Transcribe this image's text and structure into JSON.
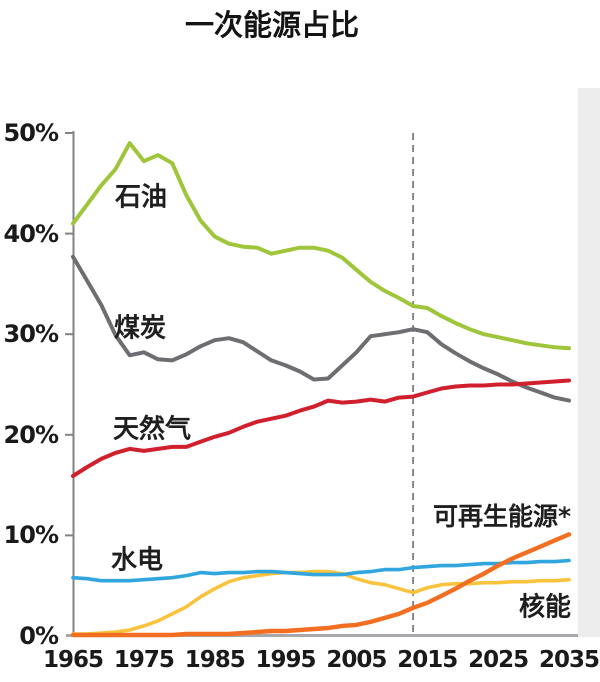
{
  "title": "一次能源占比",
  "chart_data": {
    "type": "line",
    "title": "一次能源占比",
    "xlabel": "",
    "ylabel": "",
    "xlim": [
      1965,
      2035
    ],
    "ylim": [
      0,
      50
    ],
    "grid": false,
    "legend_position": "inline-labels",
    "dashed_line_year": 2013,
    "axis_color": "#a6a8ab",
    "yaxis_color": "#808285",
    "dashed_color": "#7c7d80",
    "xticks": [
      "1965",
      "1975",
      "1985",
      "1995",
      "2005",
      "2015",
      "2025",
      "2035"
    ],
    "yticks": [
      "0%",
      "10%",
      "20%",
      "30%",
      "40%",
      "50%"
    ],
    "x": [
      1965,
      1967,
      1969,
      1971,
      1973,
      1975,
      1977,
      1979,
      1981,
      1983,
      1985,
      1987,
      1989,
      1991,
      1993,
      1995,
      1997,
      1999,
      2001,
      2003,
      2005,
      2007,
      2009,
      2011,
      2013,
      2015,
      2017,
      2019,
      2021,
      2023,
      2025,
      2027,
      2029,
      2031,
      2033,
      2035
    ],
    "series": [
      {
        "name": "oil",
        "label": "石油",
        "color": "#9fc63b",
        "width": 4,
        "values": [
          41.0,
          42.9,
          44.8,
          46.4,
          49.0,
          47.2,
          47.8,
          47.0,
          43.8,
          41.3,
          39.7,
          39.0,
          38.7,
          38.6,
          38.0,
          38.3,
          38.6,
          38.6,
          38.3,
          37.6,
          36.4,
          35.2,
          34.3,
          33.6,
          32.8,
          32.6,
          31.8,
          31.1,
          30.5,
          30.0,
          29.7,
          29.4,
          29.1,
          28.9,
          28.7,
          28.6
        ]
      },
      {
        "name": "coal",
        "label": "煤炭",
        "color": "#6d6e71",
        "width": 4,
        "values": [
          37.7,
          35.3,
          32.9,
          29.9,
          27.9,
          28.2,
          27.5,
          27.4,
          28.0,
          28.8,
          29.4,
          29.6,
          29.2,
          28.3,
          27.4,
          26.9,
          26.3,
          25.5,
          25.6,
          26.9,
          28.2,
          29.8,
          30.0,
          30.2,
          30.5,
          30.2,
          29.0,
          28.1,
          27.3,
          26.6,
          26.0,
          25.3,
          24.7,
          24.2,
          23.7,
          23.4
        ]
      },
      {
        "name": "natural-gas",
        "label": "天然气",
        "color": "#d0202e",
        "width": 4,
        "values": [
          15.9,
          16.8,
          17.6,
          18.2,
          18.6,
          18.4,
          18.6,
          18.8,
          18.8,
          19.3,
          19.8,
          20.2,
          20.8,
          21.3,
          21.6,
          21.9,
          22.4,
          22.8,
          23.4,
          23.2,
          23.3,
          23.5,
          23.3,
          23.7,
          23.8,
          24.2,
          24.6,
          24.8,
          24.9,
          24.9,
          25.0,
          25.0,
          25.1,
          25.2,
          25.3,
          25.4
        ]
      },
      {
        "name": "nuclear",
        "label": "核能",
        "color": "#fac33d",
        "width": 3.6,
        "values": [
          0.2,
          0.2,
          0.3,
          0.4,
          0.6,
          1.0,
          1.5,
          2.2,
          2.9,
          3.9,
          4.7,
          5.4,
          5.8,
          6.0,
          6.2,
          6.3,
          6.3,
          6.4,
          6.4,
          6.2,
          5.7,
          5.3,
          5.1,
          4.7,
          4.3,
          4.8,
          5.1,
          5.2,
          5.2,
          5.3,
          5.3,
          5.4,
          5.4,
          5.5,
          5.5,
          5.6
        ]
      },
      {
        "name": "hydro",
        "label": "水电",
        "color": "#31a5de",
        "width": 3.6,
        "values": [
          5.8,
          5.7,
          5.5,
          5.5,
          5.5,
          5.6,
          5.7,
          5.8,
          6.0,
          6.3,
          6.2,
          6.3,
          6.3,
          6.4,
          6.4,
          6.3,
          6.2,
          6.1,
          6.1,
          6.1,
          6.3,
          6.4,
          6.6,
          6.6,
          6.8,
          6.9,
          7.0,
          7.0,
          7.1,
          7.2,
          7.2,
          7.3,
          7.3,
          7.4,
          7.4,
          7.5
        ]
      },
      {
        "name": "renewables",
        "label": "可再生能源*",
        "color": "#f26f21",
        "width": 4.4,
        "values": [
          0.1,
          0.1,
          0.1,
          0.1,
          0.1,
          0.1,
          0.1,
          0.1,
          0.2,
          0.2,
          0.2,
          0.2,
          0.3,
          0.4,
          0.5,
          0.5,
          0.6,
          0.7,
          0.8,
          1.0,
          1.1,
          1.4,
          1.8,
          2.2,
          2.8,
          3.3,
          4.0,
          4.7,
          5.5,
          6.2,
          7.0,
          7.7,
          8.3,
          8.9,
          9.5,
          10.1
        ]
      }
    ]
  }
}
